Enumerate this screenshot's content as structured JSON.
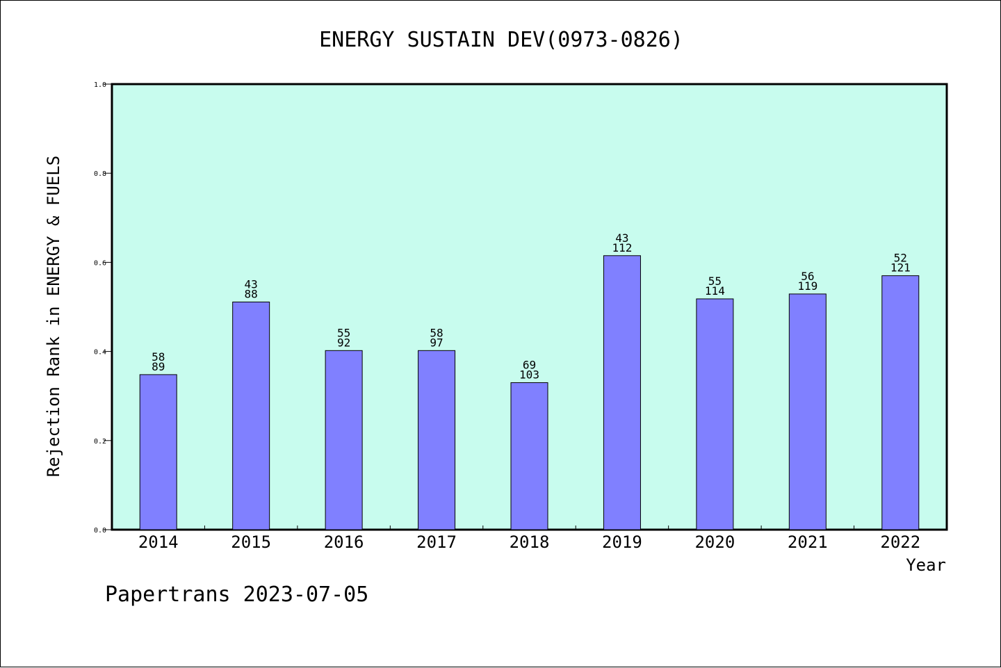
{
  "chart_data": {
    "type": "bar",
    "title": "ENERGY SUSTAIN DEV(0973-0826)",
    "xlabel": "Year",
    "ylabel": "Rejection Rank in ENERGY & FUELS",
    "categories": [
      "2014",
      "2015",
      "2016",
      "2017",
      "2018",
      "2019",
      "2020",
      "2021",
      "2022"
    ],
    "values": [
      0.348,
      0.511,
      0.402,
      0.402,
      0.33,
      0.615,
      0.518,
      0.529,
      0.57
    ],
    "labels_top": [
      "58",
      "43",
      "55",
      "58",
      "69",
      "43",
      "55",
      "56",
      "52"
    ],
    "labels_bottom": [
      "89",
      "88",
      "92",
      "97",
      "103",
      "112",
      "114",
      "119",
      "121"
    ],
    "ylim": [
      0,
      1.0
    ],
    "yticks": [
      0.0,
      0.2,
      0.4,
      0.6,
      0.8,
      1.0
    ],
    "ytick_labels": [
      "0.0",
      "0.2",
      "0.4",
      "0.6",
      "0.8",
      "1.0"
    ],
    "grid": false,
    "colors": {
      "plot_background": "#c8fcee",
      "bar_fill": "#8080ff",
      "bar_stroke": "#000000"
    }
  },
  "footer": {
    "text": "Papertrans 2023-07-05"
  }
}
